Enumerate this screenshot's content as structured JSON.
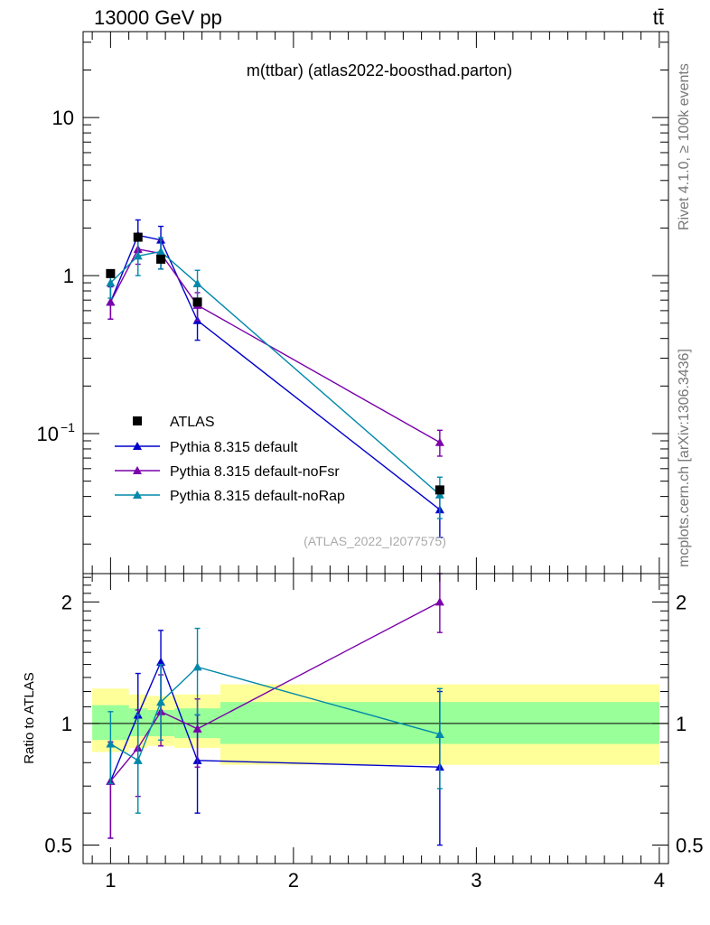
{
  "header": {
    "energy_label": "13000 GeV pp",
    "process_label": "tt̄"
  },
  "side": {
    "rivet_label": "Rivet 4.1.0, ≥ 100k events",
    "mcplots_label": "mcplots.cern.ch [arXiv:1306.3436]"
  },
  "colors": {
    "data": "#000000",
    "default": "#0000cc",
    "noFsr": "#7a00aa",
    "noRap": "#0088aa",
    "band_outer": "#ffff99",
    "band_inner": "#99ff99"
  },
  "chart_data": [
    {
      "type": "line",
      "title": "m(ttbar) (atlas2022-boosthad.parton)",
      "watermark": "(ATLAS_2022_I2077575)",
      "xlabel": "",
      "ylabel": "",
      "yscale": "log",
      "ylim": [
        0.013,
        35
      ],
      "xlim": [
        0.85,
        4.05
      ],
      "y_tick_labels": [
        "10",
        "1"
      ],
      "y_tick_label_minus1": "10",
      "y_tick_label_minus1_exp": "−1",
      "legend_position": "bottom-left",
      "legend_labels": [
        "ATLAS",
        "Pythia 8.315 default",
        "Pythia 8.315 default-noFsr",
        "Pythia 8.315 default-noRap"
      ],
      "data_series": {
        "name": "ATLAS",
        "x": [
          1.0,
          1.15,
          1.275,
          1.475,
          2.8
        ],
        "y": [
          1.03,
          1.75,
          1.27,
          0.68,
          0.044
        ],
        "xerr": [
          0.1,
          0.05,
          0.075,
          0.125,
          1.2
        ]
      },
      "series": [
        {
          "name": "Pythia 8.315 default",
          "color_key": "default",
          "x": [
            1.0,
            1.15,
            1.275,
            1.475,
            2.8
          ],
          "y": [
            0.68,
            1.8,
            1.68,
            0.52,
            0.033
          ],
          "err_lo": [
            0.53,
            1.4,
            1.3,
            0.39,
            0.022
          ],
          "err_hi": [
            0.85,
            2.25,
            2.05,
            0.64,
            0.044
          ]
        },
        {
          "name": "Pythia 8.315 default-noFsr",
          "color_key": "noFsr",
          "x": [
            1.0,
            1.15,
            1.275,
            1.475,
            2.8
          ],
          "y": [
            0.68,
            1.47,
            1.38,
            0.65,
            0.088
          ],
          "err_lo": [
            0.53,
            1.18,
            1.1,
            0.52,
            0.072
          ],
          "err_hi": [
            0.85,
            1.78,
            1.67,
            0.78,
            0.105
          ]
        },
        {
          "name": "Pythia 8.315 default-noRap",
          "color_key": "noRap",
          "x": [
            1.0,
            1.15,
            1.275,
            1.475,
            2.8
          ],
          "y": [
            0.9,
            1.33,
            1.42,
            0.89,
            0.041
          ],
          "err_lo": [
            0.72,
            1.0,
            1.1,
            0.7,
            0.029
          ],
          "err_hi": [
            1.08,
            1.66,
            1.74,
            1.08,
            0.053
          ]
        }
      ]
    },
    {
      "type": "line",
      "title": "",
      "ylabel": "Ratio to ATLAS",
      "xlabel": "",
      "ylim": [
        0.45,
        2.35
      ],
      "xlim": [
        0.85,
        4.05
      ],
      "x_tick_labels": [
        "1",
        "2",
        "3",
        "4"
      ],
      "y_tick_labels": [
        "2",
        "1",
        "0.5"
      ],
      "bands": [
        {
          "x0": 0.9,
          "x1": 1.1,
          "outer": [
            0.85,
            1.22
          ],
          "inner": [
            0.91,
            1.11
          ]
        },
        {
          "x0": 1.1,
          "x1": 1.2,
          "outer": [
            0.87,
            1.18
          ],
          "inner": [
            0.93,
            1.09
          ]
        },
        {
          "x0": 1.2,
          "x1": 1.35,
          "outer": [
            0.88,
            1.17
          ],
          "inner": [
            0.93,
            1.08
          ]
        },
        {
          "x0": 1.35,
          "x1": 1.6,
          "outer": [
            0.87,
            1.18
          ],
          "inner": [
            0.92,
            1.09
          ]
        },
        {
          "x0": 1.6,
          "x1": 4.0,
          "outer": [
            0.79,
            1.25
          ],
          "inner": [
            0.89,
            1.13
          ]
        }
      ],
      "series": [
        {
          "name": "Pythia 8.315 default",
          "color_key": "default",
          "x": [
            1.0,
            1.15,
            1.275,
            1.475,
            2.8
          ],
          "y": [
            0.72,
            1.05,
            1.42,
            0.81,
            0.78
          ],
          "err_lo": [
            0.52,
            0.8,
            1.06,
            0.6,
            0.5
          ],
          "err_hi": [
            0.9,
            1.33,
            1.7,
            1.05,
            1.2
          ]
        },
        {
          "name": "Pythia 8.315 default-noFsr",
          "color_key": "noFsr",
          "x": [
            1.0,
            1.15,
            1.275,
            1.475,
            2.8
          ],
          "y": [
            0.72,
            0.87,
            1.07,
            0.97,
            2.0
          ],
          "err_lo": [
            0.52,
            0.66,
            0.88,
            0.78,
            1.68
          ],
          "err_hi": [
            0.9,
            1.08,
            1.32,
            1.15,
            2.35
          ]
        },
        {
          "name": "Pythia 8.315 default-noRap",
          "color_key": "noRap",
          "x": [
            1.0,
            1.15,
            1.275,
            1.475,
            2.8
          ],
          "y": [
            0.89,
            0.81,
            1.13,
            1.38,
            0.94
          ],
          "err_lo": [
            0.71,
            0.6,
            0.91,
            1.05,
            0.69
          ],
          "err_hi": [
            1.07,
            1.05,
            1.4,
            1.72,
            1.22
          ]
        }
      ]
    }
  ]
}
